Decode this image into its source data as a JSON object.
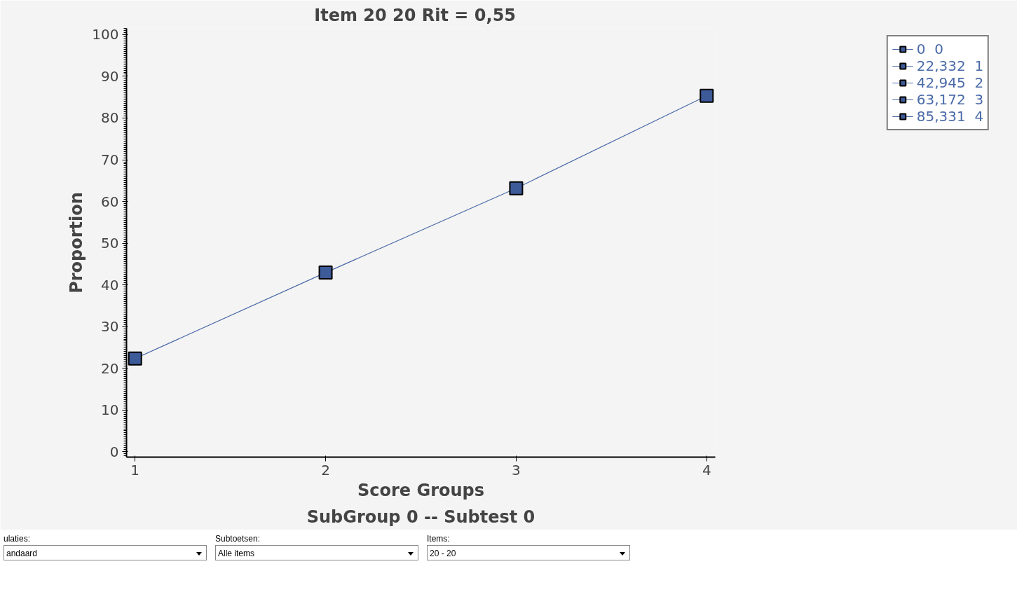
{
  "chart_data": {
    "type": "line",
    "title": "Item 20  20  Rit = 0,55",
    "subtitle": "SubGroup 0 -- Subtest 0",
    "xlabel": "Score Groups",
    "ylabel": "Proportion",
    "x": [
      1,
      2,
      3,
      4
    ],
    "xlim": [
      0.955,
      4.045
    ],
    "xticks": [
      1,
      2,
      3,
      4
    ],
    "ylim": [
      -1.3,
      101.5
    ],
    "yticks": [
      0,
      10,
      20,
      30,
      40,
      50,
      60,
      70,
      80,
      90,
      100
    ],
    "series": [
      {
        "color": "#4a6aa8",
        "values": [
          22.332,
          42.945,
          63.172,
          85.331
        ],
        "marker": "none"
      },
      {
        "type": "scatter",
        "name": "0  0",
        "color": "#3d5a99",
        "values": [
          null,
          null,
          null,
          null
        ]
      },
      {
        "type": "scatter",
        "name": "22,332  1",
        "color": "#3d5a99",
        "values": [
          22.332,
          null,
          null,
          null
        ]
      },
      {
        "type": "scatter",
        "name": "42,945  2",
        "color": "#3d5a99",
        "values": [
          null,
          42.945,
          null,
          null
        ]
      },
      {
        "type": "scatter",
        "name": "63,172  3",
        "color": "#3d5a99",
        "values": [
          null,
          null,
          63.172,
          null
        ]
      },
      {
        "type": "scatter",
        "name": "85,331  4",
        "color": "#3d5a99",
        "values": [
          null,
          null,
          null,
          85.331
        ]
      }
    ],
    "marker": "square",
    "line_style": "solid",
    "grid": false,
    "legend": "top right",
    "annotations": [
      "ulaties:",
      "andaard",
      "Subtoetsen:",
      "Alle items",
      "Items:",
      "20 - 20"
    ]
  }
}
